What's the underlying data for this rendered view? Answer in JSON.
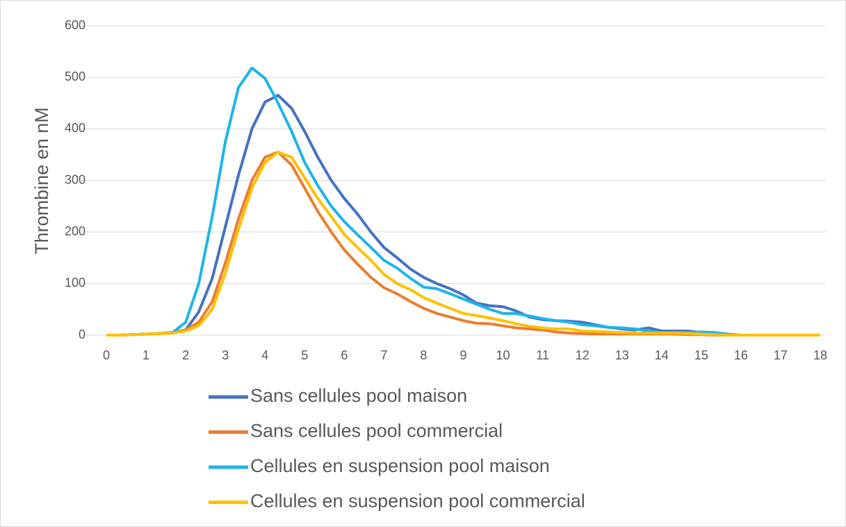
{
  "chart_data": {
    "type": "line",
    "ylabel": "Thrombine en nM",
    "x": [
      0,
      0.33,
      0.67,
      1,
      1.33,
      1.67,
      2,
      2.33,
      2.67,
      3,
      3.33,
      3.67,
      4,
      4.33,
      4.67,
      5,
      5.33,
      5.67,
      6,
      6.33,
      6.67,
      7,
      7.33,
      7.67,
      8,
      8.33,
      8.67,
      9,
      9.33,
      9.67,
      10,
      10.33,
      10.67,
      11,
      11.33,
      11.67,
      12,
      12.33,
      12.67,
      13,
      13.33,
      13.67,
      14,
      14.33,
      14.67,
      15,
      15.33,
      15.67,
      16,
      16.33,
      16.67,
      17,
      17.33,
      17.67,
      18
    ],
    "series": [
      {
        "name": "Sans cellules pool maison",
        "color": "#4472c4",
        "values": [
          0,
          0,
          1,
          2,
          3,
          5,
          10,
          45,
          110,
          210,
          310,
          400,
          452,
          465,
          440,
          395,
          345,
          300,
          265,
          235,
          200,
          170,
          150,
          128,
          112,
          100,
          90,
          78,
          62,
          57,
          55,
          47,
          35,
          30,
          28,
          27,
          25,
          20,
          15,
          12,
          10,
          14,
          8,
          8,
          8,
          5,
          3,
          1,
          0,
          0,
          0,
          0,
          0,
          0,
          0
        ]
      },
      {
        "name": "Sans cellules pool commercial",
        "color": "#ed7d31",
        "values": [
          0,
          0,
          1,
          2,
          3,
          5,
          10,
          25,
          65,
          140,
          225,
          300,
          345,
          355,
          330,
          285,
          240,
          200,
          165,
          138,
          112,
          92,
          80,
          65,
          52,
          42,
          35,
          28,
          23,
          22,
          18,
          14,
          12,
          10,
          6,
          4,
          3,
          2,
          2,
          2,
          2,
          2,
          2,
          2,
          1,
          1,
          0,
          0,
          0,
          0,
          0,
          0,
          0,
          0,
          0
        ]
      },
      {
        "name": "Cellules en suspension pool maison",
        "color": "#1eb4ea",
        "values": [
          0,
          0,
          1,
          2,
          3,
          5,
          25,
          100,
          230,
          375,
          480,
          518,
          498,
          450,
          395,
          335,
          290,
          250,
          220,
          195,
          170,
          145,
          130,
          110,
          93,
          90,
          80,
          70,
          60,
          50,
          42,
          42,
          37,
          32,
          28,
          25,
          20,
          18,
          15,
          14,
          12,
          8,
          5,
          5,
          5,
          6,
          5,
          2,
          0,
          0,
          0,
          0,
          0,
          0,
          0
        ]
      },
      {
        "name": "Cellules en suspension pool commercial",
        "color": "#ffc000",
        "values": [
          0,
          0,
          1,
          2,
          3,
          4,
          8,
          18,
          50,
          120,
          205,
          285,
          335,
          355,
          345,
          305,
          265,
          230,
          195,
          170,
          145,
          118,
          100,
          88,
          73,
          62,
          52,
          42,
          38,
          33,
          28,
          22,
          17,
          14,
          12,
          12,
          8,
          7,
          6,
          5,
          4,
          4,
          4,
          4,
          3,
          2,
          1,
          0,
          0,
          0,
          0,
          0,
          0,
          0,
          0
        ]
      }
    ],
    "xlim": [
      0,
      18
    ],
    "xticks": [
      0,
      1,
      2,
      3,
      4,
      5,
      6,
      7,
      8,
      9,
      10,
      11,
      12,
      13,
      14,
      15,
      16,
      17,
      18
    ],
    "ylim": [
      0,
      600
    ],
    "yticks": [
      0,
      100,
      200,
      300,
      400,
      500,
      600
    ],
    "grid": true,
    "legend": "bottom"
  }
}
